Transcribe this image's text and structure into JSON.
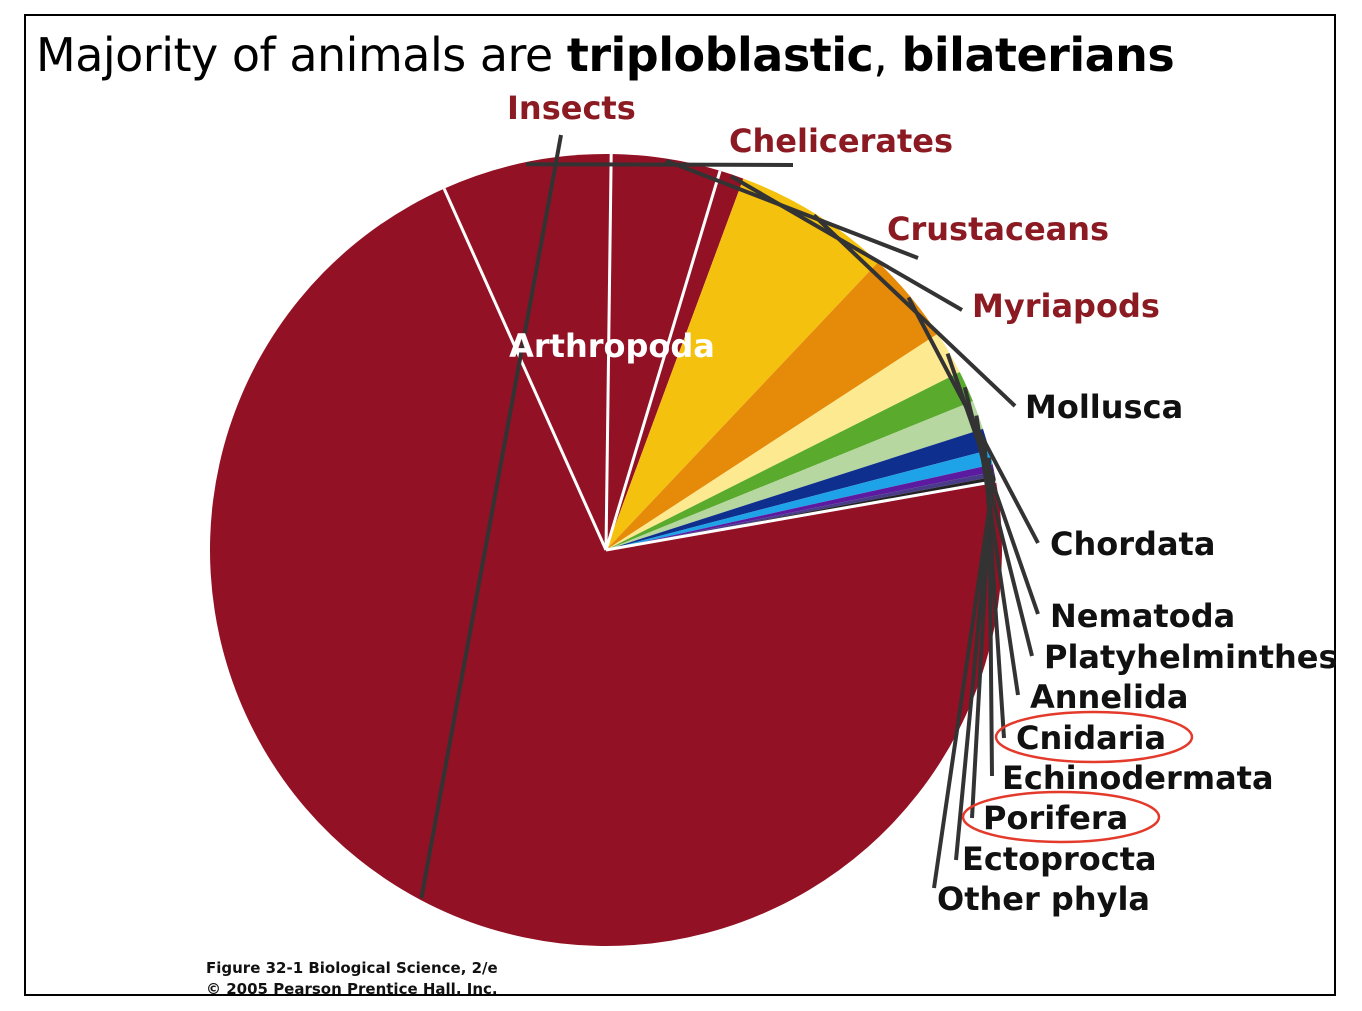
{
  "title": {
    "normal": "Majority of animals are ",
    "bold_1": "triploblastic",
    "sep": ", ",
    "bold_2": "bilaterians"
  },
  "caption": {
    "line1": "Figure 32-1  Biological Science, 2/e",
    "line2": "© 2005 Pearson Prentice Hall, Inc."
  },
  "chart_data": {
    "type": "pie",
    "group_label": "Arthropoda",
    "slices": [
      {
        "label": "Insects",
        "value": 72.0,
        "color": "#931124",
        "group": "Arthropoda"
      },
      {
        "label": "Chelicerates",
        "value": 7.0,
        "color": "#931124",
        "group": "Arthropoda"
      },
      {
        "label": "Crustaceans",
        "value": 4.5,
        "color": "#931124",
        "group": "Arthropoda"
      },
      {
        "label": "Myriapods",
        "value": 1.0,
        "color": "#931124",
        "group": "Arthropoda"
      },
      {
        "label": "Mollusca",
        "value": 6.5,
        "color": "#f5c10f"
      },
      {
        "label": "Chordata",
        "value": 3.8,
        "color": "#e68a0a"
      },
      {
        "label": "Nematoda",
        "value": 1.8,
        "color": "#fde98f"
      },
      {
        "label": "Platyhelminthes",
        "value": 1.3,
        "color": "#5aaa2e"
      },
      {
        "label": "Annelida",
        "value": 1.2,
        "color": "#b6d7a0"
      },
      {
        "label": "Cnidaria",
        "value": 0.9,
        "color": "#0f2f8e",
        "highlighted": true
      },
      {
        "label": "Echinodermata",
        "value": 0.6,
        "color": "#1fa3e8"
      },
      {
        "label": "Porifera",
        "value": 0.3,
        "color": "#5b1aa0",
        "highlighted": true
      },
      {
        "label": "Ectoprocta",
        "value": 0.2,
        "color": "#4a3a8a"
      },
      {
        "label": "Other phyla",
        "value": 0.2,
        "color": "#222222"
      }
    ],
    "colors": {
      "arthropoda_label": "#8b1a22",
      "other_label": "#111111",
      "highlight_ring": "#e33a2b",
      "leader": "#333333",
      "divider": "#ffffff"
    }
  }
}
